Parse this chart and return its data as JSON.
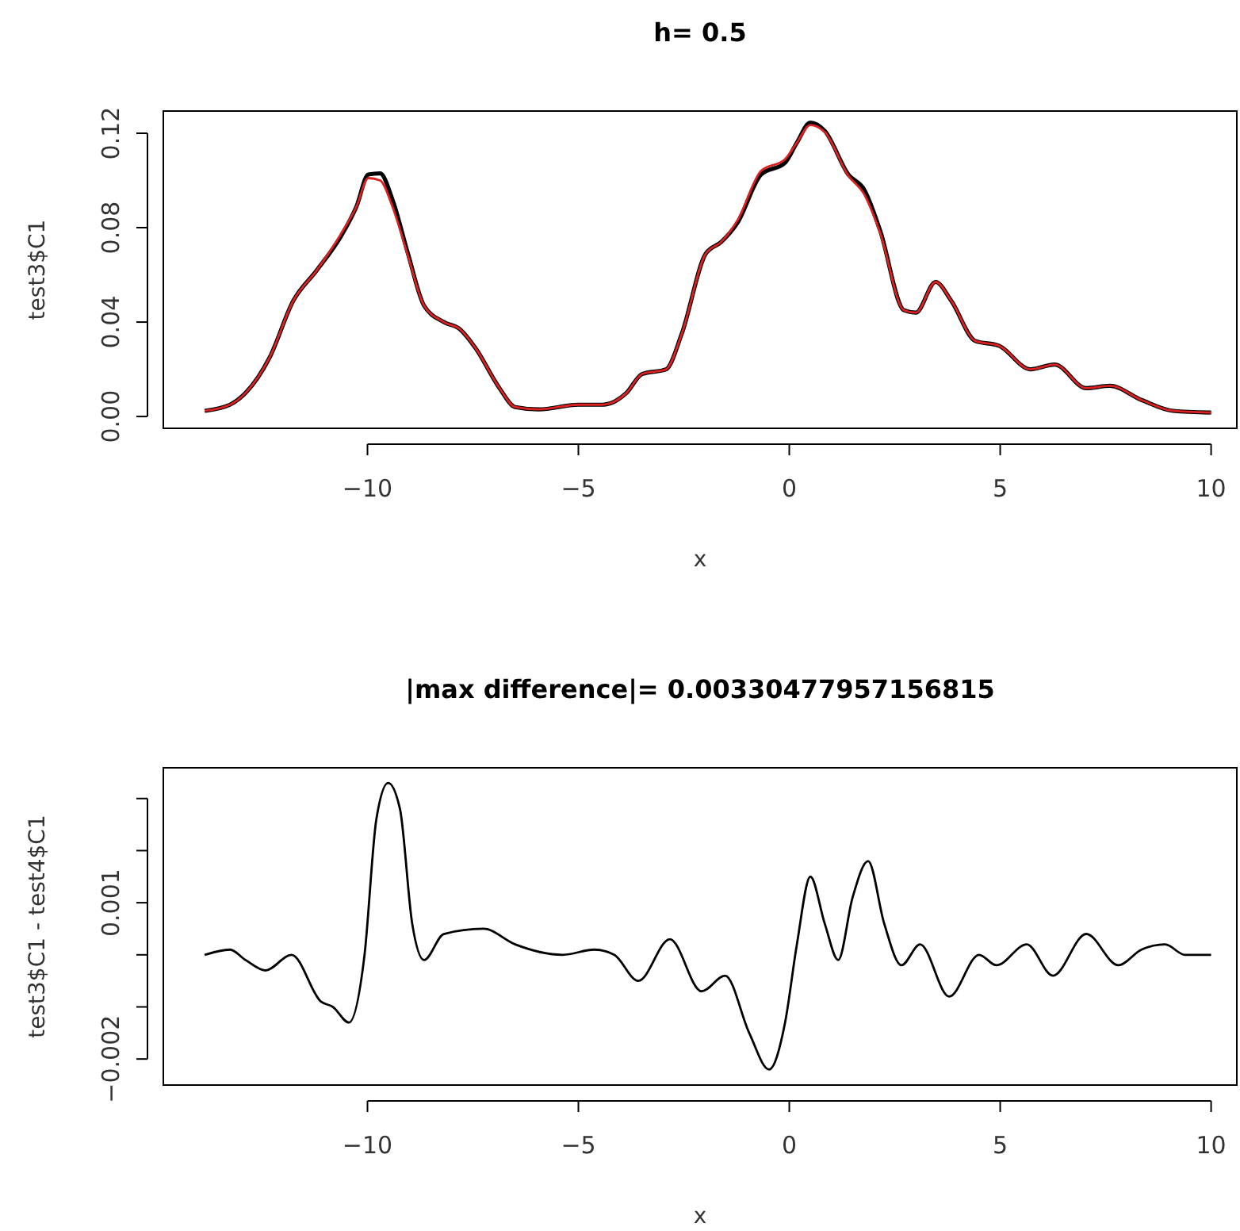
{
  "chart_data": [
    {
      "type": "line",
      "title": "h= 0.5",
      "xlabel": "x",
      "ylabel": "test3$C1",
      "xlim": [
        -14.84,
        10.61
      ],
      "ylim": [
        -0.005,
        0.1294
      ],
      "xticks": [
        -10,
        -5,
        0,
        5,
        10
      ],
      "yticks": [
        {
          "value": 0,
          "label": "0.00"
        },
        {
          "value": 0.04,
          "label": "0.04"
        },
        {
          "value": 0.08,
          "label": "0.08"
        },
        {
          "value": 0.12,
          "label": "0.12"
        }
      ],
      "grid": false,
      "line_style": "solid",
      "marker": "none",
      "x": [
        -13.86,
        -13.26,
        -12.89,
        -12.32,
        -11.76,
        -11.2,
        -10.64,
        -10.26,
        -9.98,
        -9.7,
        -9.41,
        -9.04,
        -8.66,
        -8.19,
        -7.81,
        -7.44,
        -6.87,
        -6.5,
        -5.94,
        -5.0,
        -4.43,
        -3.86,
        -3.49,
        -2.92,
        -2.55,
        -1.98,
        -1.61,
        -1.23,
        -0.67,
        -0.1,
        0.18,
        0.5,
        0.84,
        1.4,
        1.78,
        2.15,
        2.72,
        3.0,
        3.47,
        3.84,
        4.41,
        4.97,
        5.72,
        6.29,
        7.04,
        7.6,
        8.35,
        9.1,
        10.0
      ],
      "series": [
        {
          "color": "#000000",
          "values": [
            0.0024,
            0.005,
            0.01,
            0.025,
            0.049,
            0.062,
            0.076,
            0.089,
            0.1025,
            0.103,
            0.092,
            0.069,
            0.047,
            0.04,
            0.037,
            0.029,
            0.012,
            0.004,
            0.003,
            0.005,
            0.005,
            0.01,
            0.018,
            0.02,
            0.035,
            0.069,
            0.074,
            0.082,
            0.1025,
            0.1075,
            0.116,
            0.1245,
            0.121,
            0.1025,
            0.096,
            0.079,
            0.045,
            0.044,
            0.057,
            0.049,
            0.032,
            0.03,
            0.02,
            0.022,
            0.012,
            0.013,
            0.007,
            0.0024,
            0.0017
          ]
        },
        {
          "color": "#dd2020",
          "values": [
            0.0024,
            0.005,
            0.01,
            0.025,
            0.049,
            0.062,
            0.077,
            0.089,
            0.101,
            0.1,
            0.089,
            0.068,
            0.047,
            0.04,
            0.037,
            0.029,
            0.012,
            0.004,
            0.003,
            0.005,
            0.005,
            0.01,
            0.018,
            0.02,
            0.035,
            0.069,
            0.074,
            0.083,
            0.104,
            0.109,
            0.116,
            0.1235,
            0.1205,
            0.102,
            0.094,
            0.078,
            0.045,
            0.044,
            0.057,
            0.049,
            0.032,
            0.03,
            0.02,
            0.022,
            0.012,
            0.013,
            0.007,
            0.0024,
            0.0017
          ]
        }
      ]
    },
    {
      "type": "line",
      "title": "|max difference|= 0.00330477957156815",
      "xlabel": "x",
      "ylabel": "test3$C1 - test4$C1",
      "xlim": [
        -14.84,
        10.61
      ],
      "ylim": [
        -0.0025,
        0.00359
      ],
      "xticks": [
        -10,
        -5,
        0,
        5,
        10
      ],
      "yticks": [
        {
          "value": -0.002,
          "label": "−0.002"
        },
        {
          "value": -0.001,
          "label": null
        },
        {
          "value": 0,
          "label": null
        },
        {
          "value": 0.001,
          "label": "0.001"
        },
        {
          "value": 0.002,
          "label": null
        },
        {
          "value": 0.003,
          "label": null
        }
      ],
      "grid": false,
      "line_style": "solid",
      "marker": "none",
      "x": [
        -13.86,
        -13.26,
        -12.89,
        -12.42,
        -11.8,
        -11.1,
        -10.82,
        -10.44,
        -10.07,
        -9.79,
        -9.51,
        -9.23,
        -8.94,
        -8.66,
        -8.19,
        -7.25,
        -6.5,
        -5.37,
        -4.62,
        -4.15,
        -3.58,
        -2.83,
        -2.08,
        -1.52,
        -0.95,
        -0.48,
        -0.1,
        0.18,
        0.5,
        0.84,
        1.16,
        1.5,
        1.87,
        2.25,
        2.66,
        3.1,
        3.79,
        4.5,
        4.91,
        5.63,
        6.25,
        7.04,
        7.8,
        8.35,
        8.91,
        9.38,
        10.0
      ],
      "series": [
        {
          "color": "#000000",
          "values": [
            0,
            0.0001,
            -0.0001,
            -0.0003,
            0,
            -0.0009,
            -0.001,
            -0.0013,
            0,
            0.0026,
            0.0033,
            0.0028,
            0.0006,
            -0.0001,
            0.0004,
            0.0005,
            0.0002,
            0,
            0.0001,
            0,
            -0.0005,
            0.0003,
            -0.0007,
            -0.0004,
            -0.0015,
            -0.0022,
            -0.0013,
            0.0002,
            0.0015,
            0.0006,
            -0.0001,
            0.0011,
            0.0018,
            0.0006,
            -0.0002,
            0.0002,
            -0.0008,
            0,
            -0.0002,
            0.0002,
            -0.0004,
            0.0004,
            -0.0002,
            0.0001,
            0.0002,
            0,
            0
          ]
        }
      ]
    }
  ]
}
